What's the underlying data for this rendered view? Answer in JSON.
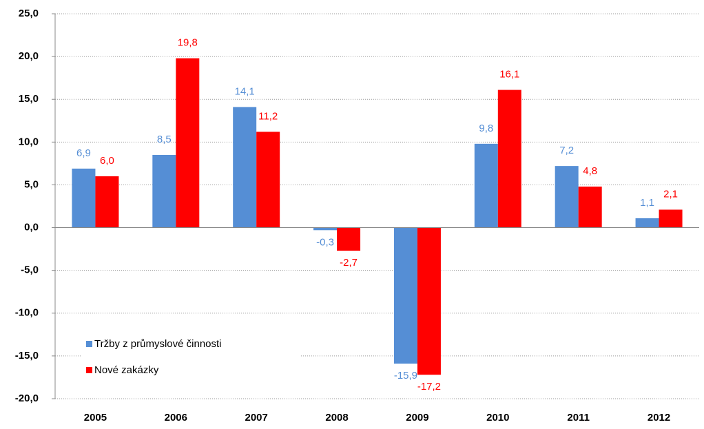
{
  "chart_data": {
    "type": "bar",
    "categories": [
      "2005",
      "2006",
      "2007",
      "2008",
      "2009",
      "2010",
      "2011",
      "2012"
    ],
    "series": [
      {
        "name": "Tržby z průmyslové činnosti",
        "color": "#558ed5",
        "values": [
          6.9,
          8.5,
          14.1,
          -0.3,
          -15.9,
          9.8,
          7.2,
          1.1
        ],
        "value_labels": [
          "6,9",
          "8,5",
          "14,1",
          "-0,3",
          "-15,9",
          "9,8",
          "7,2",
          "1,1"
        ]
      },
      {
        "name": "Nové zakázky",
        "color": "#ff0000",
        "values": [
          6.0,
          19.8,
          11.2,
          -2.7,
          -17.2,
          16.1,
          4.8,
          2.1
        ],
        "value_labels": [
          "6,0",
          "19,8",
          "11,2",
          "-2,7",
          "-17,2",
          "16,1",
          "4,8",
          "2,1"
        ]
      }
    ],
    "ylim": [
      -20,
      25
    ],
    "yticks": [
      {
        "value": -20,
        "label": "-20,0"
      },
      {
        "value": -15,
        "label": "-15,0"
      },
      {
        "value": -10,
        "label": "-10,0"
      },
      {
        "value": -5,
        "label": "-5,0"
      },
      {
        "value": 0,
        "label": "0,0"
      },
      {
        "value": 5,
        "label": "5,0"
      },
      {
        "value": 10,
        "label": "10,0"
      },
      {
        "value": 15,
        "label": "15,0"
      },
      {
        "value": 20,
        "label": "20,0"
      },
      {
        "value": 25,
        "label": "25,0"
      }
    ],
    "grid": true,
    "legend": "lower left"
  }
}
